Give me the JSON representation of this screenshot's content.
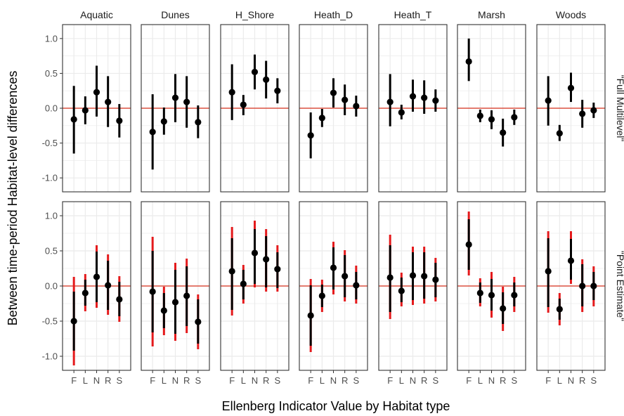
{
  "chart_data": {
    "type": "errorbar",
    "xlabel": "Ellenberg Indicator Value by Habitat type",
    "ylabel": "Between time-period Habitat-level differences",
    "ylim": [
      -1.2,
      1.2
    ],
    "yticks": [
      "-1.0",
      "-0.5",
      "0.0",
      "0.5",
      "1.0"
    ],
    "categories": [
      "F",
      "L",
      "N",
      "R",
      "S"
    ],
    "habitats": [
      "Aquatic",
      "Dunes",
      "H_Shore",
      "Heath_D",
      "Heath_T",
      "Marsh",
      "Woods"
    ],
    "rows": [
      "\"Full Multilevel\"",
      "\"Point Estimate\""
    ],
    "reference_line": 0,
    "grid": true,
    "colors": {
      "point": "#000000",
      "ci_inner": "#000000",
      "ci_outer": "#e41a1c",
      "reference": "#d7301f",
      "grid": "#ebebeb",
      "panel_border": "#333333"
    },
    "panels": [
      {
        "row": "\"Full Multilevel\"",
        "series": [
          {
            "habitat": "Aquatic",
            "est": [
              -0.16,
              -0.03,
              0.23,
              0.09,
              -0.18
            ],
            "lo": [
              -0.65,
              -0.23,
              -0.12,
              -0.27,
              -0.42
            ],
            "hi": [
              0.32,
              0.17,
              0.61,
              0.46,
              0.06
            ]
          },
          {
            "habitat": "Dunes",
            "est": [
              -0.34,
              -0.19,
              0.15,
              0.09,
              -0.2
            ],
            "lo": [
              -0.88,
              -0.38,
              -0.2,
              -0.28,
              -0.43
            ],
            "hi": [
              0.2,
              0.01,
              0.49,
              0.46,
              0.04
            ]
          },
          {
            "habitat": "H_Shore",
            "est": [
              0.23,
              0.05,
              0.52,
              0.41,
              0.25
            ],
            "lo": [
              -0.17,
              -0.1,
              0.27,
              0.14,
              0.07
            ],
            "hi": [
              0.63,
              0.19,
              0.77,
              0.68,
              0.43
            ]
          },
          {
            "habitat": "Heath_D",
            "est": [
              -0.39,
              -0.14,
              0.22,
              0.12,
              0.03
            ],
            "lo": [
              -0.72,
              -0.27,
              0.01,
              -0.1,
              -0.12
            ],
            "hi": [
              -0.06,
              -0.01,
              0.43,
              0.34,
              0.18
            ]
          },
          {
            "habitat": "Heath_T",
            "est": [
              0.09,
              -0.06,
              0.17,
              0.15,
              0.11
            ],
            "lo": [
              -0.26,
              -0.16,
              -0.05,
              -0.08,
              -0.05
            ],
            "hi": [
              0.49,
              0.05,
              0.41,
              0.4,
              0.27
            ]
          },
          {
            "habitat": "Marsh",
            "est": [
              0.67,
              -0.11,
              -0.16,
              -0.35,
              -0.13
            ],
            "lo": [
              0.39,
              -0.2,
              -0.3,
              -0.55,
              -0.24
            ],
            "hi": [
              1.0,
              -0.02,
              -0.03,
              -0.15,
              -0.02
            ]
          },
          {
            "habitat": "Woods",
            "est": [
              0.11,
              -0.36,
              0.29,
              -0.08,
              -0.03
            ],
            "lo": [
              -0.25,
              -0.47,
              0.09,
              -0.28,
              -0.14
            ],
            "hi": [
              0.46,
              -0.24,
              0.51,
              0.12,
              0.08
            ]
          }
        ]
      },
      {
        "row": "\"Point Estimate\"",
        "series": [
          {
            "habitat": "Aquatic",
            "est": [
              -0.5,
              -0.1,
              0.13,
              0.01,
              -0.19
            ],
            "lo68": [
              -0.92,
              -0.28,
              -0.23,
              -0.34,
              -0.43
            ],
            "hi68": [
              -0.08,
              0.09,
              0.49,
              0.36,
              0.06
            ],
            "lo95": [
              -1.13,
              -0.36,
              -0.31,
              -0.41,
              -0.51
            ],
            "hi95": [
              0.13,
              0.17,
              0.58,
              0.45,
              0.14
            ]
          },
          {
            "habitat": "Dunes",
            "est": [
              -0.08,
              -0.35,
              -0.23,
              -0.14,
              -0.51
            ],
            "lo68": [
              -0.66,
              -0.6,
              -0.68,
              -0.57,
              -0.82
            ],
            "hi68": [
              0.5,
              -0.1,
              0.23,
              0.28,
              -0.19
            ],
            "lo95": [
              -0.86,
              -0.7,
              -0.78,
              -0.67,
              -0.9
            ],
            "hi95": [
              0.7,
              -0.01,
              0.33,
              0.39,
              -0.12
            ]
          },
          {
            "habitat": "H_Shore",
            "est": [
              0.21,
              0.03,
              0.47,
              0.38,
              0.24
            ],
            "lo68": [
              -0.34,
              -0.19,
              0.03,
              -0.02,
              -0.03
            ],
            "hi68": [
              0.68,
              0.23,
              0.81,
              0.71,
              0.48
            ],
            "lo95": [
              -0.42,
              -0.25,
              -0.02,
              -0.08,
              -0.08
            ],
            "hi95": [
              0.84,
              0.3,
              0.93,
              0.81,
              0.58
            ]
          },
          {
            "habitat": "Heath_D",
            "est": [
              -0.42,
              -0.14,
              0.26,
              0.14,
              0.01
            ],
            "lo68": [
              -0.85,
              -0.3,
              -0.05,
              -0.16,
              -0.19
            ],
            "hi68": [
              0.01,
              0.02,
              0.55,
              0.44,
              0.2
            ],
            "lo95": [
              -0.94,
              -0.37,
              -0.12,
              -0.22,
              -0.25
            ],
            "hi95": [
              0.1,
              0.09,
              0.63,
              0.51,
              0.29
            ]
          },
          {
            "habitat": "Heath_T",
            "est": [
              0.12,
              -0.07,
              0.15,
              0.14,
              0.09
            ],
            "lo68": [
              -0.37,
              -0.23,
              -0.2,
              -0.18,
              -0.16
            ],
            "hi68": [
              0.58,
              0.12,
              0.48,
              0.48,
              0.33
            ],
            "lo95": [
              -0.47,
              -0.29,
              -0.27,
              -0.25,
              -0.22
            ],
            "hi95": [
              0.73,
              0.19,
              0.56,
              0.56,
              0.4
            ]
          },
          {
            "habitat": "Marsh",
            "est": [
              0.59,
              -0.1,
              -0.13,
              -0.32,
              -0.13
            ],
            "lo68": [
              0.23,
              -0.24,
              -0.35,
              -0.54,
              -0.29
            ],
            "hi68": [
              0.95,
              0.05,
              0.1,
              -0.09,
              0.05
            ],
            "lo95": [
              0.15,
              -0.29,
              -0.45,
              -0.64,
              -0.37
            ],
            "hi95": [
              1.06,
              0.11,
              0.2,
              -0.01,
              0.13
            ]
          },
          {
            "habitat": "Woods",
            "est": [
              0.21,
              -0.33,
              0.36,
              0.0,
              0.0
            ],
            "lo68": [
              -0.3,
              -0.48,
              0.09,
              -0.29,
              -0.2
            ],
            "hi68": [
              0.68,
              -0.18,
              0.67,
              0.31,
              0.2
            ],
            "lo95": [
              -0.38,
              -0.56,
              0.03,
              -0.37,
              -0.29
            ],
            "hi95": [
              0.78,
              -0.1,
              0.78,
              0.38,
              0.28
            ]
          }
        ]
      }
    ]
  }
}
